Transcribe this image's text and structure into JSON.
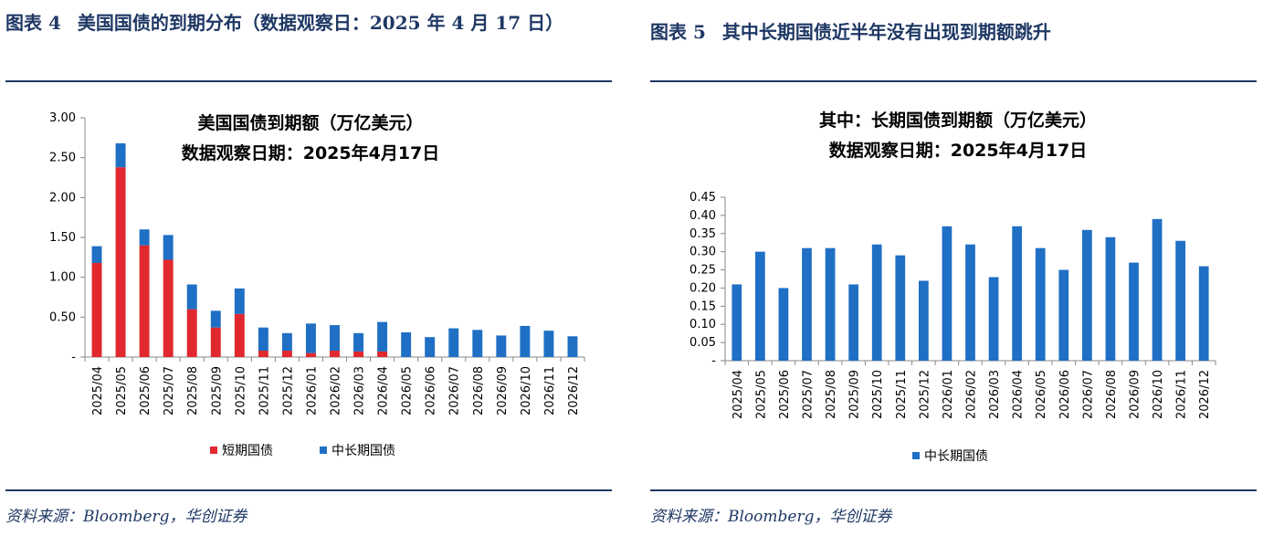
{
  "colors": {
    "short": "#e0282e",
    "long": "#1f6fc5",
    "rule": "#1f3864"
  },
  "left": {
    "figure_number": "图表 4",
    "figure_title": "美国国债的到期分布（数据观察日：2025 年 4 月 17 日）",
    "source": "资料来源：Bloomberg，华创证券"
  },
  "right": {
    "figure_number": "图表 5",
    "figure_title": "其中长期国债近半年没有出现到期额跳升",
    "source": "资料来源：Bloomberg，华创证券"
  },
  "chart_data": [
    {
      "type": "bar",
      "stacked": true,
      "title": "美国国债到期额（万亿美元）",
      "subtitle": "数据观察日期：2025年4月17日",
      "categories": [
        "2025/04",
        "2025/05",
        "2025/06",
        "2025/07",
        "2025/08",
        "2025/09",
        "2025/10",
        "2025/11",
        "2025/12",
        "2026/01",
        "2026/02",
        "2026/03",
        "2026/04",
        "2026/05",
        "2026/06",
        "2026/07",
        "2026/08",
        "2026/09",
        "2026/10",
        "2026/11",
        "2026/12"
      ],
      "series": [
        {
          "name": "短期国债",
          "color": "#e0282e",
          "values": [
            1.18,
            2.38,
            1.4,
            1.22,
            0.6,
            0.37,
            0.54,
            0.08,
            0.08,
            0.05,
            0.08,
            0.07,
            0.07,
            0,
            0,
            0,
            0,
            0,
            0,
            0,
            0
          ]
        },
        {
          "name": "中长期国债",
          "color": "#1f6fc5",
          "values": [
            0.21,
            0.3,
            0.2,
            0.31,
            0.31,
            0.21,
            0.32,
            0.29,
            0.22,
            0.37,
            0.32,
            0.23,
            0.37,
            0.31,
            0.25,
            0.36,
            0.34,
            0.27,
            0.39,
            0.33,
            0.26
          ]
        }
      ],
      "ylim": [
        0,
        3.0
      ],
      "yticks": [
        "-",
        "0.50",
        "1.00",
        "1.50",
        "2.00",
        "2.50",
        "3.00"
      ],
      "legend": "bottom"
    },
    {
      "type": "bar",
      "title": "其中：长期国债到期额（万亿美元）",
      "subtitle": "数据观察日期：2025年4月17日",
      "categories": [
        "2025/04",
        "2025/05",
        "2025/06",
        "2025/07",
        "2025/08",
        "2025/09",
        "2025/10",
        "2025/11",
        "2025/12",
        "2026/01",
        "2026/02",
        "2026/03",
        "2026/04",
        "2026/05",
        "2026/06",
        "2026/07",
        "2026/08",
        "2026/09",
        "2026/10",
        "2026/11",
        "2026/12"
      ],
      "series": [
        {
          "name": "中长期国债",
          "color": "#1f6fc5",
          "values": [
            0.21,
            0.3,
            0.2,
            0.31,
            0.31,
            0.21,
            0.32,
            0.29,
            0.22,
            0.37,
            0.32,
            0.23,
            0.37,
            0.31,
            0.25,
            0.36,
            0.34,
            0.27,
            0.39,
            0.33,
            0.26
          ]
        }
      ],
      "ylim": [
        0,
        0.45
      ],
      "yticks": [
        "-",
        "0.05",
        "0.10",
        "0.15",
        "0.20",
        "0.25",
        "0.30",
        "0.35",
        "0.40",
        "0.45"
      ],
      "legend": "bottom"
    }
  ]
}
